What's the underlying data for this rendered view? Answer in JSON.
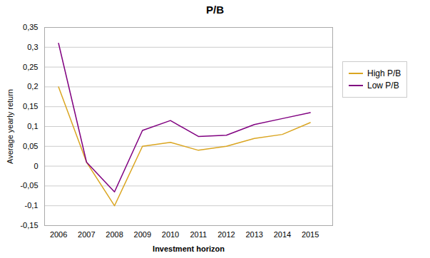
{
  "chart_data": {
    "type": "line",
    "title": "P/B",
    "xlabel": "Investment horizon",
    "ylabel": "Average yearly return",
    "x": [
      2006,
      2007,
      2008,
      2009,
      2010,
      2011,
      2012,
      2013,
      2014,
      2015
    ],
    "series": [
      {
        "name": "High P/B",
        "color": "#DAA520",
        "values": [
          0.2,
          0.01,
          -0.1,
          0.05,
          0.06,
          0.04,
          0.05,
          0.07,
          0.08,
          0.11
        ]
      },
      {
        "name": "Low P/B",
        "color": "#800080",
        "values": [
          0.31,
          0.01,
          -0.065,
          0.09,
          0.115,
          0.075,
          0.078,
          0.105,
          0.12,
          0.135
        ]
      }
    ],
    "xlim": [
      2005.5,
      2015.8
    ],
    "xticks": [
      2006,
      2007,
      2008,
      2009,
      2010,
      2011,
      2012,
      2013,
      2014,
      2015
    ],
    "ylim": [
      -0.15,
      0.35
    ],
    "yticks": [
      {
        "value": -0.15,
        "label": "-0,15"
      },
      {
        "value": -0.1,
        "label": "-0,1"
      },
      {
        "value": -0.05,
        "label": "-0,05"
      },
      0,
      {
        "value": 0.05,
        "label": "0,05"
      },
      {
        "value": 0.1,
        "label": "0,1"
      },
      {
        "value": 0.15,
        "label": "0,15"
      },
      {
        "value": 0.2,
        "label": "0,2"
      },
      {
        "value": 0.25,
        "label": "0,25"
      },
      {
        "value": 0.3,
        "label": "0,3"
      },
      {
        "value": 0.35,
        "label": "0,35"
      }
    ],
    "grid": true,
    "legend": "right"
  }
}
